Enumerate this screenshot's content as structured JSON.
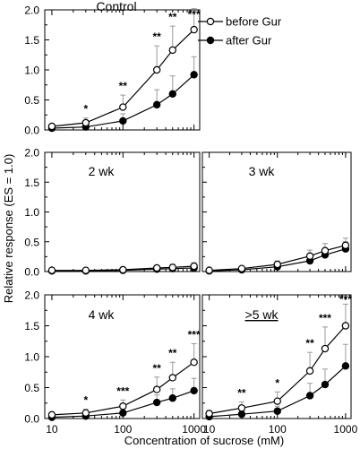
{
  "figure": {
    "ylabel": "Relative response (ES = 1.0)",
    "xlabel": "Concentration of sucrose (mM)",
    "legend": {
      "before": "before Gur",
      "after": "after Gur"
    }
  },
  "chart_data": [
    {
      "type": "line",
      "title": "Control",
      "x": [
        10,
        30,
        100,
        300,
        500,
        1000
      ],
      "xscale": "log",
      "ylim": [
        0,
        2.0
      ],
      "yticks": [
        "0.0",
        "0.5",
        "1.0",
        "1.5",
        "2.0"
      ],
      "series": [
        {
          "name": "before Gur",
          "values": [
            0.06,
            0.12,
            0.38,
            1.0,
            1.33,
            1.67
          ],
          "errors": [
            0.04,
            0.08,
            0.2,
            0.4,
            0.4,
            0.35
          ]
        },
        {
          "name": "after Gur",
          "values": [
            0.03,
            0.05,
            0.15,
            0.42,
            0.6,
            0.92
          ],
          "errors": [
            0.03,
            0.05,
            0.12,
            0.25,
            0.3,
            0.3
          ]
        }
      ],
      "significance": [
        "",
        "*",
        "**",
        "**",
        "**",
        "***"
      ]
    },
    {
      "type": "line",
      "title": "2 wk",
      "x": [
        10,
        30,
        100,
        300,
        500,
        1000
      ],
      "xscale": "log",
      "ylim": [
        0,
        2.0
      ],
      "yticks": [
        "0.0",
        "0.5",
        "1.0",
        "1.5",
        "2.0"
      ],
      "series": [
        {
          "name": "before Gur",
          "values": [
            0.02,
            0.02,
            0.03,
            0.06,
            0.07,
            0.09
          ],
          "errors": [
            0.02,
            0.02,
            0.03,
            0.04,
            0.05,
            0.06
          ]
        },
        {
          "name": "after Gur",
          "values": [
            0.01,
            0.01,
            0.02,
            0.04,
            0.05,
            0.06
          ],
          "errors": [
            0.01,
            0.01,
            0.02,
            0.03,
            0.04,
            0.05
          ]
        }
      ],
      "significance": [
        "",
        "",
        "",
        "",
        "",
        ""
      ]
    },
    {
      "type": "line",
      "title": "3 wk",
      "x": [
        10,
        30,
        100,
        300,
        500,
        1000
      ],
      "xscale": "log",
      "ylim": [
        0,
        2.0
      ],
      "yticks": [],
      "series": [
        {
          "name": "before Gur",
          "values": [
            0.02,
            0.05,
            0.12,
            0.26,
            0.35,
            0.44
          ],
          "errors": [
            0.02,
            0.03,
            0.06,
            0.1,
            0.12,
            0.12
          ]
        },
        {
          "name": "after Gur",
          "values": [
            0.01,
            0.03,
            0.08,
            0.18,
            0.28,
            0.38
          ],
          "errors": [
            0.01,
            0.02,
            0.05,
            0.08,
            0.1,
            0.12
          ]
        }
      ],
      "significance": [
        "",
        "",
        "",
        "",
        "",
        ""
      ]
    },
    {
      "type": "line",
      "title": "4 wk",
      "x": [
        10,
        30,
        100,
        300,
        500,
        1000
      ],
      "xscale": "log",
      "ylim": [
        0,
        2.0
      ],
      "yticks": [
        "0.0",
        "0.5",
        "1.0",
        "1.5",
        "2.0"
      ],
      "series": [
        {
          "name": "before Gur",
          "values": [
            0.06,
            0.09,
            0.2,
            0.47,
            0.66,
            0.91
          ],
          "errors": [
            0.04,
            0.06,
            0.1,
            0.2,
            0.25,
            0.3
          ]
        },
        {
          "name": "after Gur",
          "values": [
            0.02,
            0.04,
            0.09,
            0.26,
            0.33,
            0.45
          ],
          "errors": [
            0.02,
            0.03,
            0.06,
            0.12,
            0.15,
            0.2
          ]
        }
      ],
      "significance": [
        "",
        "*",
        "***",
        "**",
        "**",
        "***"
      ]
    },
    {
      "type": "line",
      "title": ">5 wk",
      "x": [
        10,
        30,
        100,
        300,
        500,
        1000
      ],
      "xscale": "log",
      "ylim": [
        0,
        2.0
      ],
      "yticks": [],
      "series": [
        {
          "name": "before Gur",
          "values": [
            0.08,
            0.17,
            0.28,
            0.77,
            1.13,
            1.5
          ],
          "errors": [
            0.05,
            0.1,
            0.15,
            0.3,
            0.35,
            0.35
          ]
        },
        {
          "name": "after Gur",
          "values": [
            0.03,
            0.07,
            0.12,
            0.37,
            0.55,
            0.85
          ],
          "errors": [
            0.03,
            0.05,
            0.08,
            0.2,
            0.25,
            0.35
          ]
        }
      ],
      "significance": [
        "",
        "**",
        "*",
        "**",
        "***",
        "***"
      ]
    }
  ]
}
